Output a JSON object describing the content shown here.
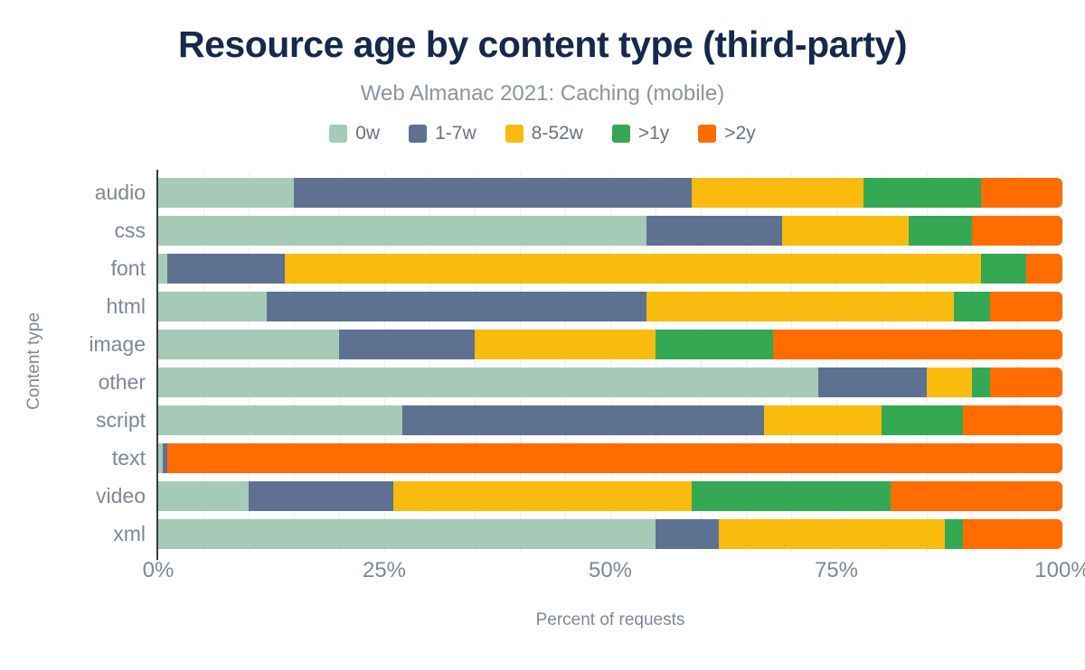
{
  "header": {
    "title": "Resource age by content type (third-party)",
    "subtitle": "Web Almanac 2021: Caching (mobile)"
  },
  "chart_data": {
    "type": "bar",
    "orientation": "horizontal",
    "stacked": true,
    "title": "Resource age by content type (third-party)",
    "subtitle": "Web Almanac 2021: Caching (mobile)",
    "xlabel": "Percent of requests",
    "ylabel": "Content type",
    "xlim": [
      0,
      100
    ],
    "x_tick_labels": [
      "0%",
      "25%",
      "50%",
      "75%",
      "100%"
    ],
    "x_tick_values": [
      0,
      25,
      50,
      75,
      100
    ],
    "grid": "vertical minor gridlines every 5%",
    "legend_position": "top",
    "categories": [
      "audio",
      "css",
      "font",
      "html",
      "image",
      "other",
      "script",
      "text",
      "video",
      "xml"
    ],
    "series": [
      {
        "name": "0w",
        "color": "#a6cab8",
        "values": [
          15,
          54,
          1,
          12,
          20,
          73,
          27,
          0.5,
          10,
          55
        ]
      },
      {
        "name": "1-7w",
        "color": "#5e7191",
        "values": [
          44,
          15,
          13,
          42,
          15,
          12,
          40,
          0.5,
          16,
          7
        ]
      },
      {
        "name": "8-52w",
        "color": "#f9bb0d",
        "values": [
          19,
          14,
          77,
          34,
          20,
          5,
          13,
          0,
          33,
          25
        ]
      },
      {
        "name": ">1y",
        "color": "#34a853",
        "values": [
          13,
          7,
          5,
          4,
          13,
          2,
          9,
          0,
          22,
          2
        ]
      },
      {
        "name": ">2y",
        "color": "#ff6d00",
        "values": [
          9,
          10,
          4,
          8,
          32,
          8,
          11,
          99,
          19,
          11
        ]
      }
    ]
  }
}
